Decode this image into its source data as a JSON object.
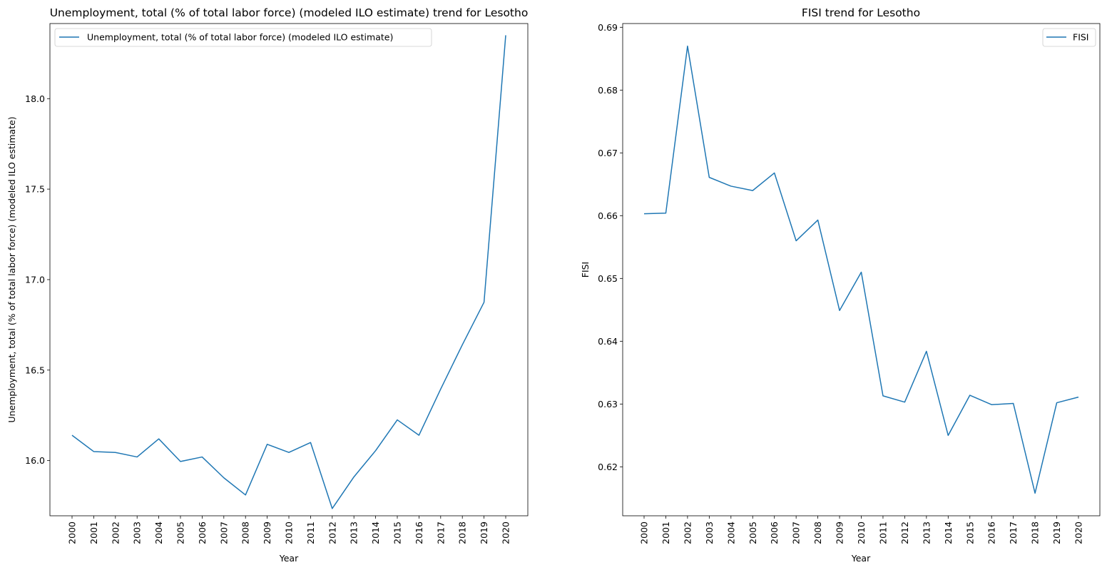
{
  "colors": {
    "series": "#1f77b4",
    "axis": "#000000",
    "legend_border": "#cccccc"
  },
  "chart_data": [
    {
      "type": "line",
      "title": "Unemployment, total (% of total labor force) (modeled ILO estimate) trend for Lesotho",
      "xlabel": "Year",
      "ylabel": "Unemployment, total (% of total labor force) (modeled ILO estimate)",
      "categories": [
        "2000",
        "2001",
        "2002",
        "2003",
        "2004",
        "2005",
        "2006",
        "2007",
        "2008",
        "2009",
        "2010",
        "2011",
        "2012",
        "2013",
        "2014",
        "2015",
        "2016",
        "2017",
        "2018",
        "2019",
        "2020"
      ],
      "series": [
        {
          "name": "Unemployment, total (% of total labor force) (modeled ILO estimate)",
          "values": [
            16.14,
            16.05,
            16.045,
            16.02,
            16.12,
            15.995,
            16.02,
            15.905,
            15.81,
            16.09,
            16.045,
            16.1,
            15.735,
            15.91,
            16.055,
            16.225,
            16.14,
            16.395,
            16.64,
            16.875,
            18.35
          ]
        }
      ],
      "ylim": [
        15.695,
        18.415
      ],
      "yticks": [
        16.0,
        16.5,
        17.0,
        17.5,
        18.0
      ],
      "ytick_labels": [
        "16.0",
        "16.5",
        "17.0",
        "17.5",
        "18.0"
      ],
      "legend": "upper-left",
      "grid": false
    },
    {
      "type": "line",
      "title": "FISI trend for Lesotho",
      "xlabel": "Year",
      "ylabel": "FISI",
      "categories": [
        "2000",
        "2001",
        "2002",
        "2003",
        "2004",
        "2005",
        "2006",
        "2007",
        "2008",
        "2009",
        "2010",
        "2011",
        "2012",
        "2013",
        "2014",
        "2015",
        "2016",
        "2017",
        "2018",
        "2019",
        "2020"
      ],
      "series": [
        {
          "name": "FISI",
          "values": [
            0.6603,
            0.6604,
            0.687,
            0.6661,
            0.6647,
            0.664,
            0.6668,
            0.656,
            0.6593,
            0.6449,
            0.651,
            0.6313,
            0.6303,
            0.6384,
            0.625,
            0.6314,
            0.6299,
            0.6301,
            0.6158,
            0.6302,
            0.6311
          ]
        }
      ],
      "ylim": [
        0.6122,
        0.6906
      ],
      "yticks": [
        0.62,
        0.63,
        0.64,
        0.65,
        0.66,
        0.67,
        0.68,
        0.69
      ],
      "ytick_labels": [
        "0.62",
        "0.63",
        "0.64",
        "0.65",
        "0.66",
        "0.67",
        "0.68",
        "0.69"
      ],
      "legend": "upper-right",
      "grid": false
    }
  ]
}
